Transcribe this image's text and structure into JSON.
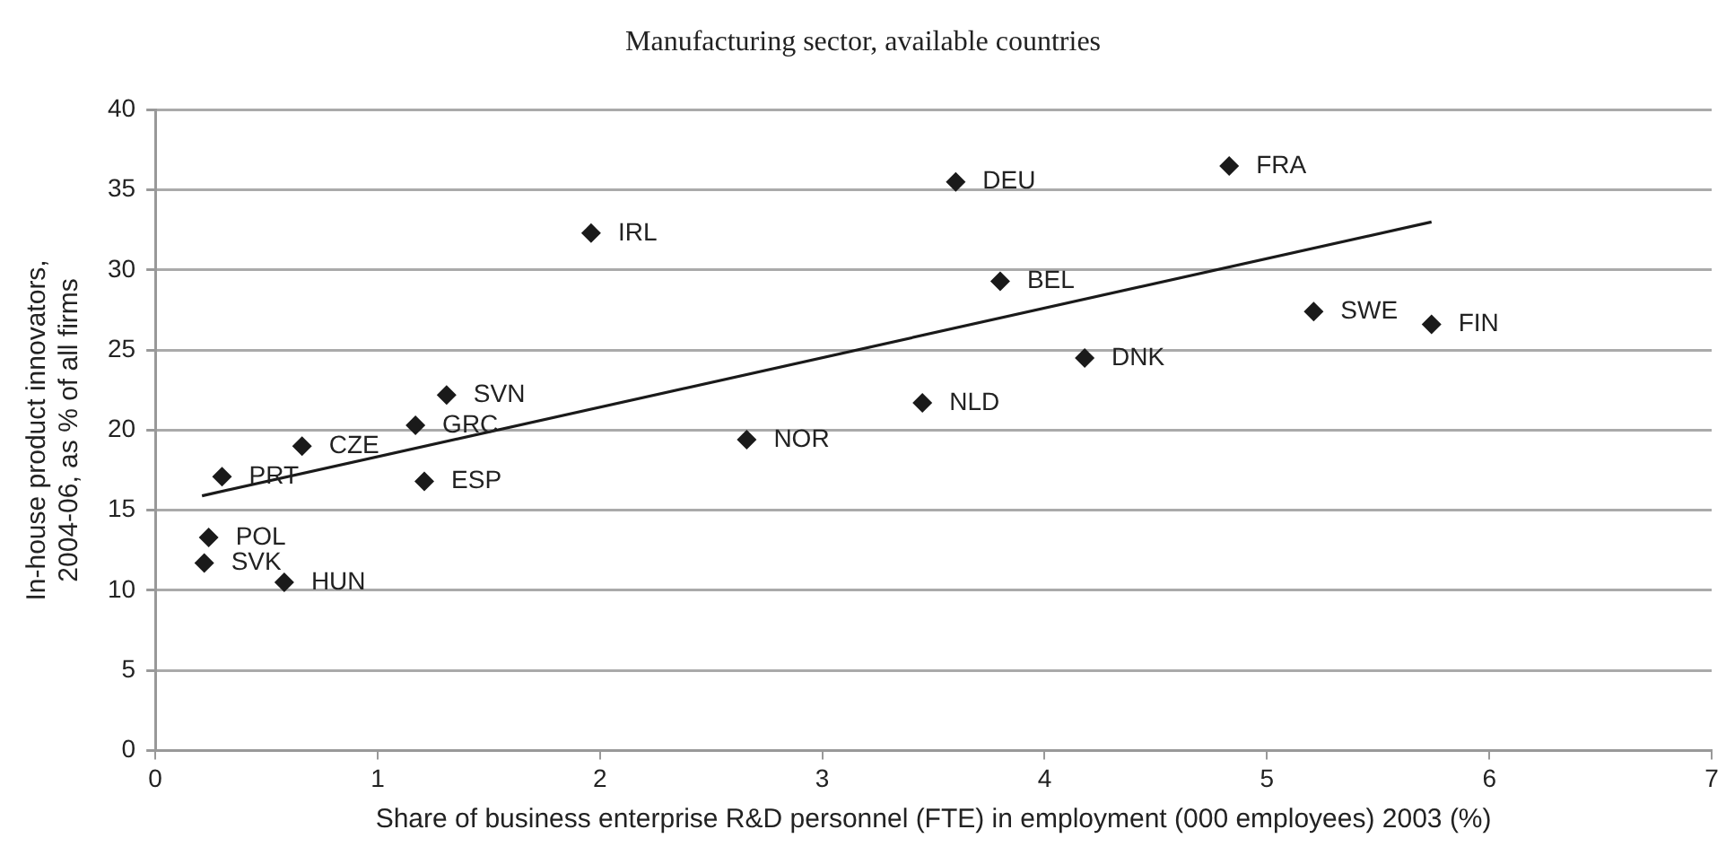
{
  "chart_data": {
    "type": "scatter",
    "title": "Manufacturing sector, available countries",
    "xlabel": "Share of business enterprise R&D personnel (FTE) in employment (000 employees) 2003 (%)",
    "ylabel": "In-house product innovators, 2004-06, as % of all firms",
    "xlim": [
      0,
      7
    ],
    "xticks": [
      0,
      1,
      2,
      3,
      4,
      5,
      6,
      7
    ],
    "ylim": [
      0,
      40
    ],
    "yticks": [
      0,
      5,
      10,
      15,
      20,
      25,
      30,
      35,
      40
    ],
    "grid": "y",
    "legend": false,
    "marker": "diamond",
    "series": [
      {
        "color": "#1a1a1a",
        "x": [
          0.3,
          0.66,
          1.17,
          1.31,
          1.21,
          1.96,
          2.66,
          0.24,
          0.22,
          0.58,
          3.6,
          4.83,
          3.8,
          5.21,
          5.74,
          4.18,
          3.45
        ],
        "values": [
          17.1,
          19.0,
          20.3,
          22.2,
          16.8,
          32.3,
          19.4,
          13.3,
          11.7,
          10.5,
          35.5,
          36.5,
          29.3,
          27.4,
          26.6,
          24.5,
          21.7
        ]
      },
      {
        "type": "line",
        "color": "#1a1a1a",
        "marker": "none",
        "line_style": "solid",
        "x": [
          0.21,
          5.74
        ],
        "values": [
          15.9,
          33.0
        ]
      }
    ],
    "annotations": [
      {
        "text": "PRT",
        "x": 0.3,
        "y": 17.1
      },
      {
        "text": "CZE",
        "x": 0.66,
        "y": 19.0
      },
      {
        "text": "GRC",
        "x": 1.17,
        "y": 20.3
      },
      {
        "text": "SVN",
        "x": 1.31,
        "y": 22.2
      },
      {
        "text": "ESP",
        "x": 1.21,
        "y": 16.8
      },
      {
        "text": "IRL",
        "x": 1.96,
        "y": 32.3
      },
      {
        "text": "NOR",
        "x": 2.66,
        "y": 19.4
      },
      {
        "text": "POL",
        "x": 0.24,
        "y": 13.3
      },
      {
        "text": "SVK",
        "x": 0.22,
        "y": 11.7
      },
      {
        "text": "HUN",
        "x": 0.58,
        "y": 10.5
      },
      {
        "text": "DEU",
        "x": 3.6,
        "y": 35.5
      },
      {
        "text": "FRA",
        "x": 4.83,
        "y": 36.5
      },
      {
        "text": "BEL",
        "x": 3.8,
        "y": 29.3
      },
      {
        "text": "SWE",
        "x": 5.21,
        "y": 27.4
      },
      {
        "text": "FIN",
        "x": 5.74,
        "y": 26.6
      },
      {
        "text": "DNK",
        "x": 4.18,
        "y": 24.5
      },
      {
        "text": "NLD",
        "x": 3.45,
        "y": 21.7
      }
    ]
  }
}
